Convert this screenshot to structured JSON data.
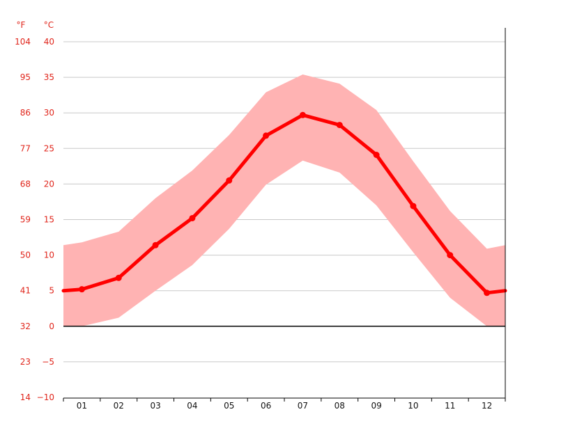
{
  "chart_data": {
    "type": "line",
    "units": {
      "fahrenheit_label": "°F",
      "celsius_label": "°C"
    },
    "x": [
      "01",
      "02",
      "03",
      "04",
      "05",
      "06",
      "07",
      "08",
      "09",
      "10",
      "11",
      "12"
    ],
    "series": [
      {
        "values": [
          5.2,
          6.8,
          11.4,
          15.2,
          20.5,
          26.8,
          29.7,
          28.3,
          24.1,
          16.9,
          10.0,
          4.7
        ],
        "color": "#ff0000",
        "type": "line"
      }
    ],
    "range_band": {
      "upper": [
        11.8,
        13.3,
        18.0,
        21.9,
        26.9,
        32.9,
        35.4,
        34.1,
        30.4,
        23.2,
        16.2,
        10.9
      ],
      "lower": [
        0.0,
        1.2,
        5.0,
        8.6,
        13.7,
        19.9,
        23.3,
        21.6,
        17.0,
        10.4,
        4.0,
        0.0
      ],
      "color": "#ffb3b3"
    },
    "endpoints": {
      "left": {
        "value": 5.0,
        "upper": 11.4,
        "lower": 0.0
      },
      "right": {
        "value": 5.0,
        "upper": 11.4,
        "lower": 0.0
      }
    },
    "y_celsius_ticks": [
      "40",
      "35",
      "30",
      "25",
      "20",
      "15",
      "10",
      "5",
      "0",
      "−5",
      "−10"
    ],
    "y_fahrenheit_ticks": [
      "104",
      "95",
      "86",
      "77",
      "68",
      "59",
      "50",
      "41",
      "32",
      "23",
      "14"
    ],
    "ylim": [
      -10,
      40
    ],
    "grid": true
  }
}
